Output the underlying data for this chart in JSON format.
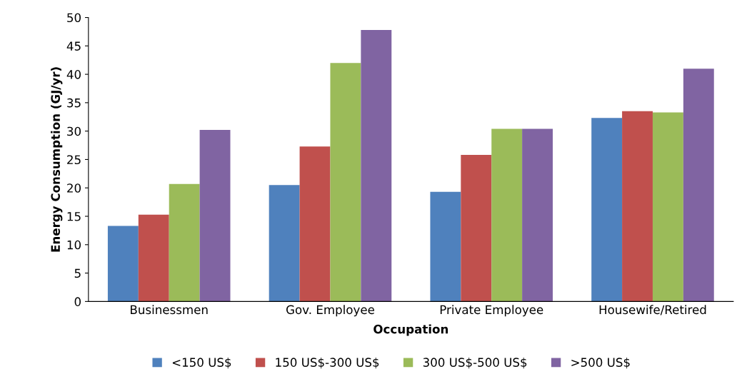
{
  "chart_data": {
    "type": "bar",
    "xlabel": "Occupation",
    "ylabel": "Energy Consumption (GJ/yr)",
    "categories": [
      "Businessmen",
      "Gov. Employee",
      "Private Employee",
      "Housewife/Retired"
    ],
    "series": [
      {
        "name": "<150 US$",
        "color": "#4f81bd",
        "values": [
          13.3,
          20.5,
          19.3,
          32.3
        ]
      },
      {
        "name": "150 US$-300 US$",
        "color": "#c0504d",
        "values": [
          15.3,
          27.3,
          25.8,
          33.5
        ]
      },
      {
        "name": "300 US$-500 US$",
        "color": "#9bbb59",
        "values": [
          20.7,
          42.0,
          30.4,
          33.3
        ]
      },
      {
        "name": ">500 US$",
        "color": "#8064a2",
        "values": [
          30.2,
          47.8,
          30.4,
          41.0
        ]
      }
    ],
    "ylim": [
      0,
      50
    ],
    "yticks": [
      0,
      5,
      10,
      15,
      20,
      25,
      30,
      35,
      40,
      45,
      50
    ],
    "grid": false,
    "legend": "bottom"
  }
}
